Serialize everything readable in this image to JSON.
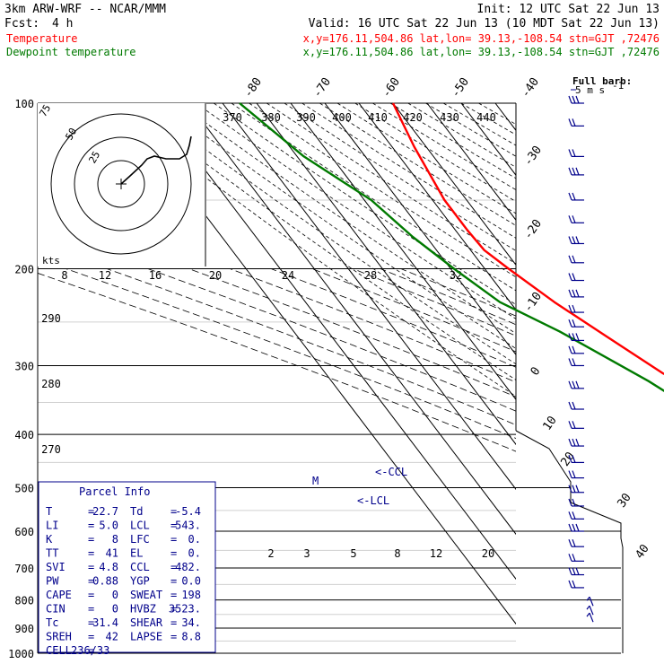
{
  "header": {
    "model": "3km ARW-WRF -- NCAR/MMM",
    "init": "Init: 12 UTC Sat 22 Jun 13",
    "fcst_label": "Fcst:",
    "fcst_value": "4 h",
    "valid": "Valid: 16 UTC Sat 22 Jun 13 (10 MDT Sat 22 Jun 13)",
    "temp_name": "Temperature",
    "temp_info": "x,y=176.11,504.86   lat,lon= 39.13,-108.54  stn=GJT ,72476",
    "dew_name": "Dewpoint temperature",
    "dew_info": "x,y=176.11,504.86   lat,lon= 39.13,-108.54  stn=GJT ,72476"
  },
  "colors": {
    "temperature": "#ff0000",
    "dewpoint": "#007a00",
    "wind": "#00008b",
    "grid": "#000000"
  },
  "barb_legend": {
    "title": "Full barb:",
    "value": "5 m s",
    "units_exp": "-1"
  },
  "hodograph": {
    "ring_labels": [
      "75",
      "50",
      "25"
    ],
    "units": "kts",
    "speed_ticks": [
      "8",
      "12",
      "16",
      "20",
      "24",
      "28",
      "32"
    ]
  },
  "annotations": {
    "ccl": "<-CCL",
    "lcl": "<-LCL",
    "m": "M"
  },
  "parcel": {
    "title": "Parcel Info",
    "rows": [
      [
        "T",
        "=",
        "22.7",
        "Td",
        "=",
        "-5.4"
      ],
      [
        "LI",
        "=",
        "5.0",
        "LCL",
        "=",
        "543."
      ],
      [
        "K",
        "=",
        "8",
        "LFC",
        "=",
        "0."
      ],
      [
        "TT",
        "=",
        "41",
        "EL",
        "=",
        "0."
      ],
      [
        "SVI",
        "=",
        "4.8",
        "CCL",
        "=",
        "482."
      ],
      [
        "PW",
        "=",
        "0.88",
        "YGP",
        "=",
        "0.0"
      ],
      [
        "CAPE",
        "=",
        "0",
        "SWEAT",
        "=",
        "198"
      ],
      [
        "CIN",
        "=",
        "0",
        "HVBZ",
        "=",
        "3523."
      ],
      [
        "Tc",
        "=",
        "31.4",
        "SHEAR",
        "=",
        "34."
      ],
      [
        "SREH",
        "=",
        "42",
        "LAPSE",
        "=",
        "8.8"
      ],
      [
        "CELL",
        "=",
        "236/33",
        "",
        "",
        ""
      ]
    ]
  },
  "chart_data": {
    "type": "line",
    "skew_t": true,
    "pressure_levels": [
      "100",
      "200",
      "300",
      "400",
      "500",
      "600",
      "700",
      "800",
      "900",
      "1000"
    ],
    "dry_adiabat_labels": [
      "370",
      "380",
      "390",
      "400",
      "410",
      "420",
      "430",
      "440"
    ],
    "lower_theta_labels": [
      "290",
      "280",
      "270"
    ],
    "top_isotherm_labels": [
      "-80",
      "-70",
      "-60",
      "-50",
      "-40"
    ],
    "right_isotherm_labels": [
      "-30",
      "-20",
      "-10",
      "0",
      "10",
      "20",
      "30",
      "40"
    ],
    "mixing_ratio_labels": [
      "2",
      "3",
      "5",
      "8",
      "12",
      "20"
    ],
    "series": [
      {
        "name": "Temperature",
        "color": "#ff0000",
        "points": [
          [
            100,
            -60
          ],
          [
            120,
            -63.5
          ],
          [
            150,
            -66.5
          ],
          [
            170,
            -66.5
          ],
          [
            185,
            -66
          ],
          [
            200,
            -63
          ],
          [
            230,
            -57
          ],
          [
            265,
            -49.5
          ],
          [
            310,
            -41
          ],
          [
            400,
            -22
          ],
          [
            500,
            -10
          ],
          [
            560,
            -2
          ],
          [
            640,
            5
          ],
          [
            700,
            10
          ],
          [
            760,
            16
          ],
          [
            840,
            22
          ]
        ]
      },
      {
        "name": "Dewpoint temperature",
        "color": "#007a00",
        "points": [
          [
            100,
            -105
          ],
          [
            125,
            -98
          ],
          [
            150,
            -88
          ],
          [
            175,
            -84
          ],
          [
            200,
            -79
          ],
          [
            230,
            -73
          ],
          [
            260,
            -62
          ],
          [
            320,
            -47
          ],
          [
            400,
            -34
          ],
          [
            480,
            -26
          ],
          [
            540,
            -19
          ],
          [
            640,
            -11
          ],
          [
            730,
            -7
          ],
          [
            810,
            -6.5
          ],
          [
            850,
            -5.4
          ]
        ]
      }
    ],
    "wind_levels_hpa": [
      100,
      110,
      125,
      135,
      150,
      165,
      180,
      195,
      210,
      225,
      240,
      255,
      270,
      285,
      300,
      330,
      360,
      390,
      420,
      450,
      480,
      510,
      540,
      570,
      600,
      640,
      680,
      720,
      760,
      790,
      820,
      845
    ]
  }
}
